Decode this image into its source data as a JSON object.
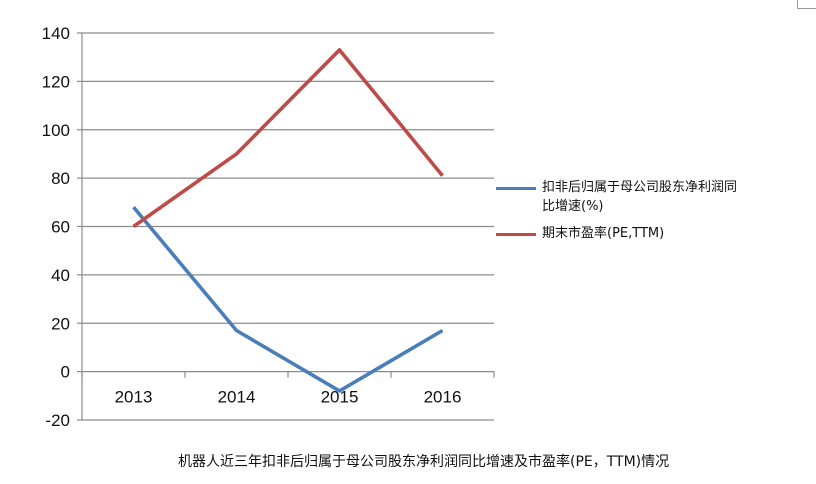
{
  "chart_data": {
    "type": "line",
    "categories": [
      "2013",
      "2014",
      "2015",
      "2016"
    ],
    "series": [
      {
        "name": "扣非后归属于母公司股东净利润同比增速(%)",
        "color": "#4a7ebb",
        "values": [
          68,
          17,
          -8,
          17
        ]
      },
      {
        "name": "期末市盈率(PE,TTM)",
        "color": "#be4b48",
        "values": [
          60,
          90,
          133,
          81
        ]
      }
    ],
    "ylim": [
      -20,
      140
    ],
    "yticks": [
      -20,
      0,
      20,
      40,
      60,
      80,
      100,
      120,
      140
    ],
    "grid": true,
    "legend_position": "right",
    "caption": "机器人近三年扣非后归属于母公司股东净利润同比增速及市盈率(PE，TTM)情况"
  }
}
